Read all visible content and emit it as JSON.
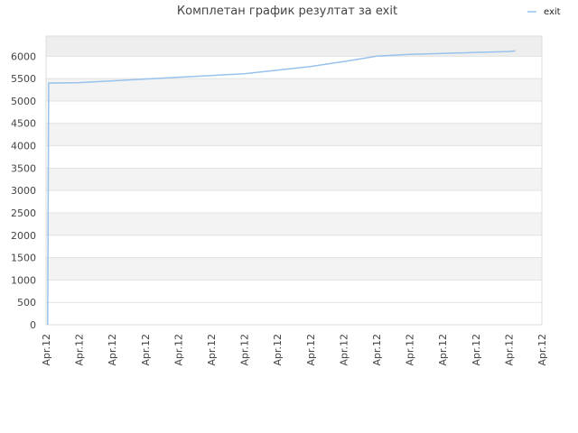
{
  "chart_data": {
    "type": "line",
    "title": "Комплетан график резултат за exit",
    "xlabel": "",
    "ylabel": "",
    "ylim": [
      0,
      6450
    ],
    "y_ticks": [
      0,
      500,
      1000,
      1500,
      2000,
      2500,
      3000,
      3500,
      4000,
      4500,
      5000,
      5500,
      6000
    ],
    "x_tick_labels": [
      "Apr.12",
      "Apr.12",
      "Apr.12",
      "Apr.12",
      "Apr.12",
      "Apr.12",
      "Apr.12",
      "Apr.12",
      "Apr.12",
      "Apr.12",
      "Apr.12",
      "Apr.12",
      "Apr.12",
      "Apr.12",
      "Apr.12",
      "Apr.12"
    ],
    "grid": true,
    "legend_position": "top-right",
    "x_domain": [
      0,
      15
    ],
    "series": [
      {
        "name": "exit",
        "color": "#99c2ee",
        "points": [
          [
            0.05,
            0
          ],
          [
            0.08,
            5400
          ],
          [
            1,
            5410
          ],
          [
            2,
            5450
          ],
          [
            3,
            5490
          ],
          [
            4,
            5530
          ],
          [
            5,
            5570
          ],
          [
            6,
            5610
          ],
          [
            7,
            5690
          ],
          [
            8,
            5770
          ],
          [
            9,
            5880
          ],
          [
            10,
            6000
          ],
          [
            11,
            6040
          ],
          [
            12,
            6060
          ],
          [
            13,
            6085
          ],
          [
            14,
            6105
          ],
          [
            14.2,
            6120
          ]
        ]
      }
    ]
  }
}
